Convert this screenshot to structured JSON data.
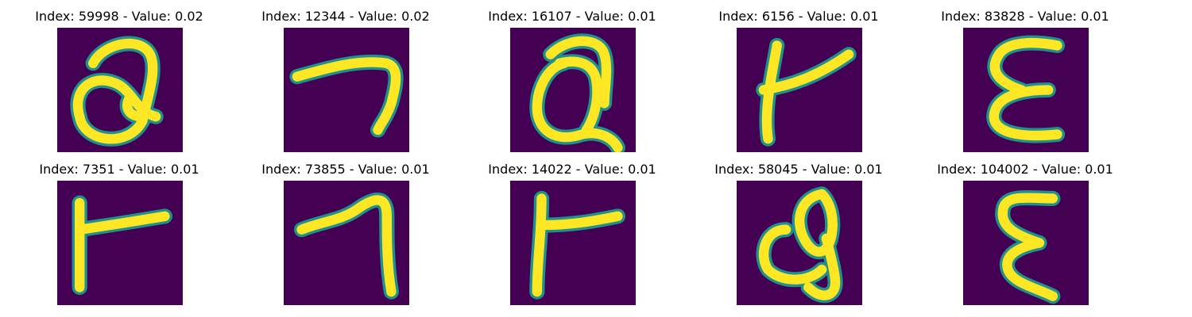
{
  "figure": {
    "background": "#ffffff",
    "image_bg_color": "#440154",
    "stroke_color": "#fde725",
    "edge_color": "#21918c",
    "panels": [
      {
        "index_label": "Index: 59998 - Value: 0.02",
        "glyph": "q-loop-a"
      },
      {
        "index_label": "Index: 12344 - Value: 0.02",
        "glyph": "seven-hook"
      },
      {
        "index_label": "Index: 16107 - Value: 0.01",
        "glyph": "q-loop-b"
      },
      {
        "index_label": "Index: 6156 - Value: 0.01",
        "glyph": "t-cross-a"
      },
      {
        "index_label": "Index: 83828 - Value: 0.01",
        "glyph": "epsilon-a"
      },
      {
        "index_label": "Index: 7351 - Value: 0.01",
        "glyph": "t-cross-b"
      },
      {
        "index_label": "Index: 73855 - Value: 0.01",
        "glyph": "seven-hook-b"
      },
      {
        "index_label": "Index: 14022 - Value: 0.01",
        "glyph": "t-cross-c"
      },
      {
        "index_label": "Index: 58045 - Value: 0.01",
        "glyph": "q-loop-c"
      },
      {
        "index_label": "Index: 104002 - Value: 0.01",
        "glyph": "epsilon-b"
      }
    ]
  }
}
